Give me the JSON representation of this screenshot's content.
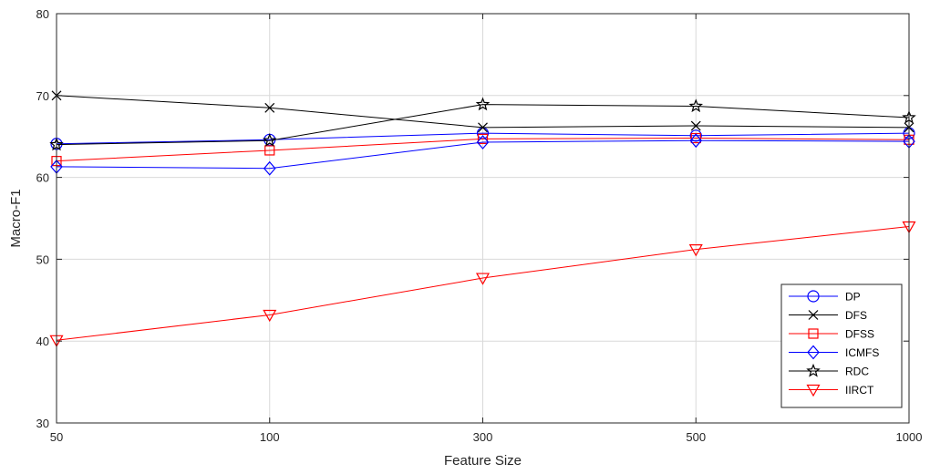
{
  "chart_data": {
    "type": "line",
    "xlabel": "Feature Size",
    "ylabel": "Macro-F1",
    "categories": [
      "50",
      "100",
      "300",
      "500",
      "1000"
    ],
    "yticks": [
      "30",
      "40",
      "50",
      "60",
      "70",
      "80"
    ],
    "ylim": [
      30,
      80
    ],
    "grid": true,
    "legend_position": "bottom-right",
    "series": [
      {
        "name": "DP",
        "color": "#0000ff",
        "marker": "circle",
        "values": [
          64.1,
          64.6,
          65.4,
          65.1,
          65.4
        ]
      },
      {
        "name": "DFS",
        "color": "#000000",
        "marker": "x",
        "values": [
          70.0,
          68.5,
          66.1,
          66.3,
          66.1
        ]
      },
      {
        "name": "DFSS",
        "color": "#ff0000",
        "marker": "square",
        "values": [
          62.0,
          63.3,
          64.7,
          64.8,
          64.6
        ]
      },
      {
        "name": "ICMFS",
        "color": "#0000ff",
        "marker": "diamond",
        "values": [
          61.3,
          61.1,
          64.3,
          64.5,
          64.4
        ]
      },
      {
        "name": "RDC",
        "color": "#000000",
        "marker": "star",
        "values": [
          64.0,
          64.5,
          68.9,
          68.7,
          67.3
        ]
      },
      {
        "name": "IIRCT",
        "color": "#ff0000",
        "marker": "triangle-down",
        "values": [
          40.1,
          43.2,
          47.7,
          51.2,
          54.0
        ]
      }
    ]
  }
}
